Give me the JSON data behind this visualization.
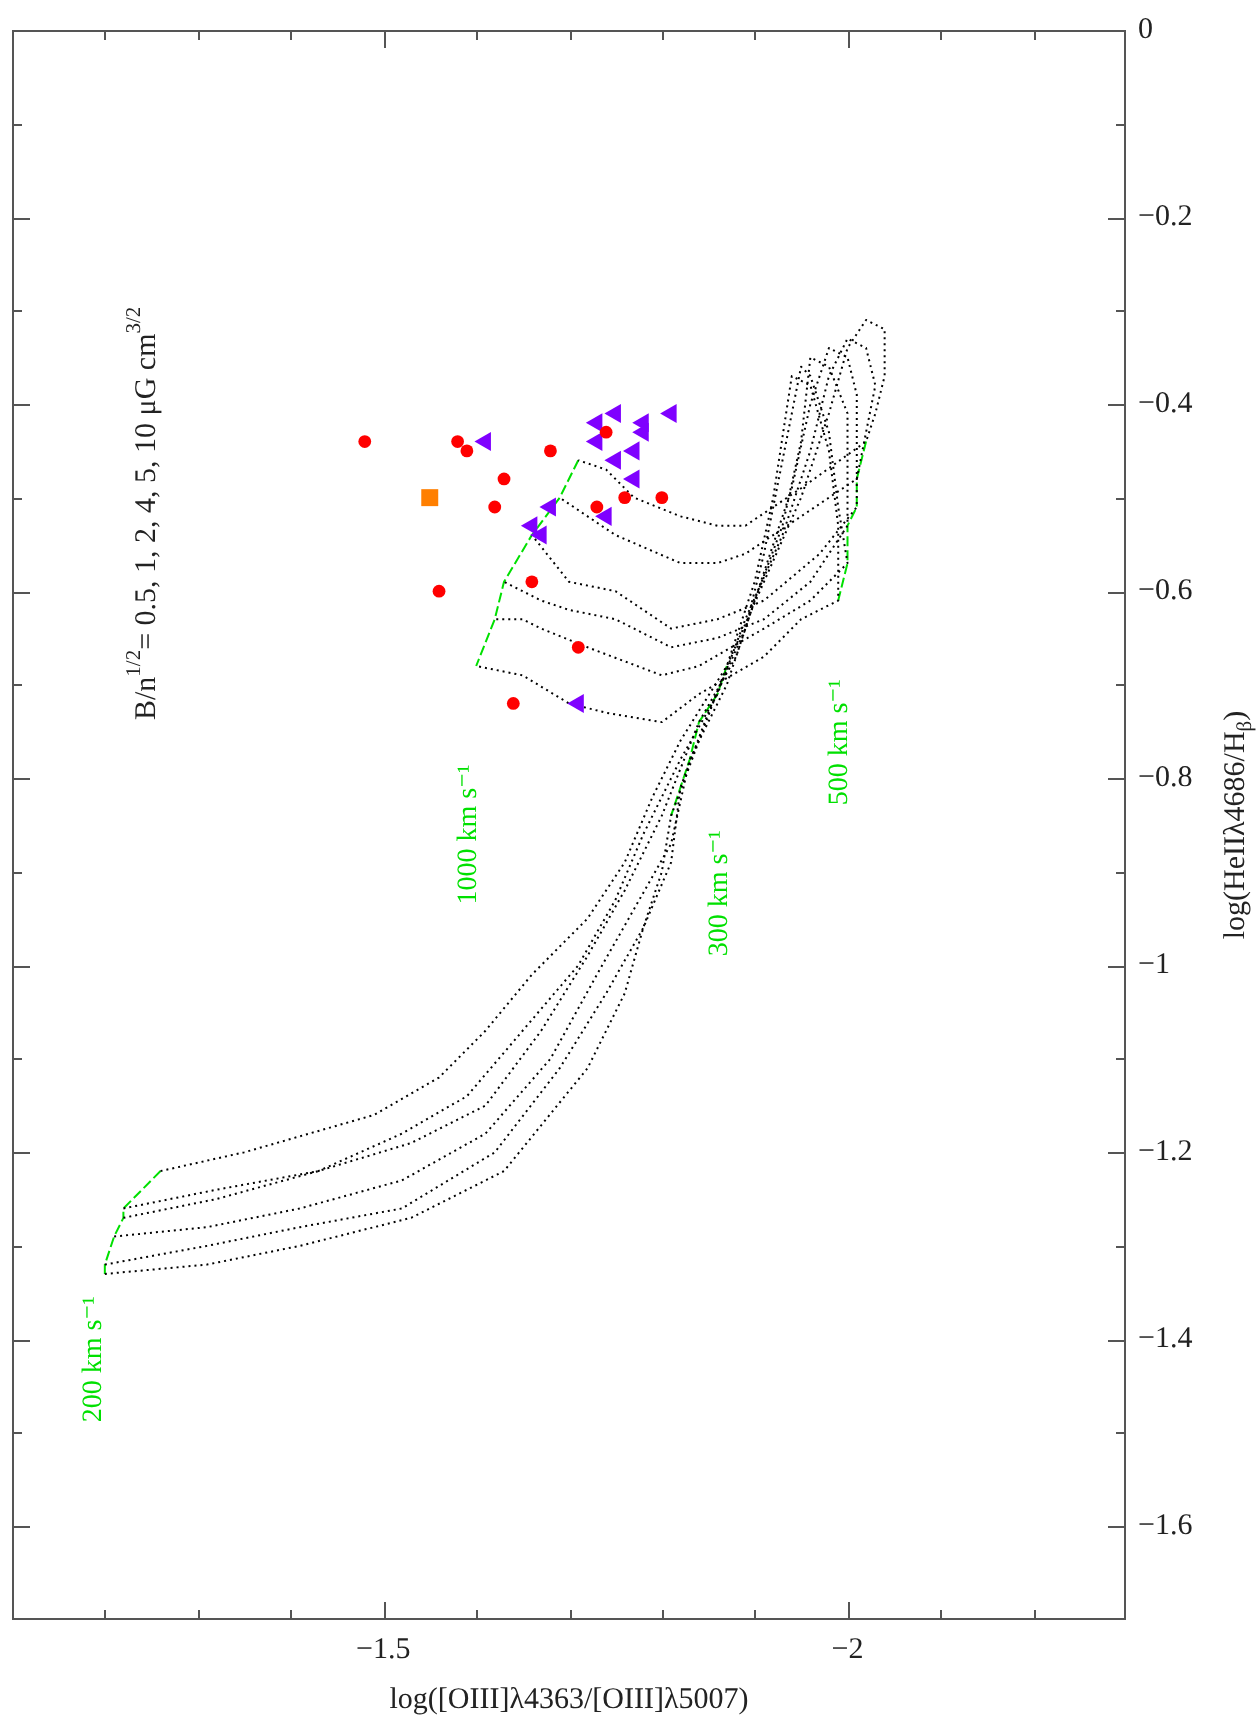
{
  "chart_data": {
    "type": "line",
    "xlabel": "log([OIII]λ4363/[OIII]λ5007)",
    "ylabel": "log(HeIIλ4686/H$_{β}$)",
    "xlim": [
      -1.1,
      -2.3
    ],
    "ylim": [
      -1.7,
      0
    ],
    "xticks": [
      {
        "value": -1.2,
        "label": null
      },
      {
        "value": -1.3,
        "label": null
      },
      {
        "value": -1.4,
        "label": null
      },
      {
        "value": -1.5,
        "label": "−1.5"
      },
      {
        "value": -1.6,
        "label": null
      },
      {
        "value": -1.7,
        "label": null
      },
      {
        "value": -1.8,
        "label": null
      },
      {
        "value": -1.9,
        "label": null
      },
      {
        "value": -2,
        "label": "−2"
      },
      {
        "value": -2.1,
        "label": null
      },
      {
        "value": -2.2,
        "label": null
      }
    ],
    "yticks": [
      0,
      {
        "value": -0.1,
        "label": null
      },
      {
        "value": -0.2,
        "label": "−0.2"
      },
      {
        "value": -0.3,
        "label": null
      },
      {
        "value": -0.4,
        "label": "−0.4"
      },
      {
        "value": -0.5,
        "label": null
      },
      {
        "value": -0.6,
        "label": "−0.6"
      },
      {
        "value": -0.7,
        "label": null
      },
      {
        "value": -0.8,
        "label": "−0.8"
      },
      {
        "value": -0.9,
        "label": null
      },
      {
        "value": -1,
        "label": "−1"
      },
      {
        "value": -1.1,
        "label": null
      },
      {
        "value": -1.2,
        "label": "−1.2"
      },
      {
        "value": -1.3,
        "label": null
      },
      {
        "value": -1.4,
        "label": "−1.4"
      },
      {
        "value": -1.5,
        "label": null
      },
      {
        "value": -1.6,
        "label": "−1.6"
      }
    ],
    "annotations": [
      "B/n$^{1/2}$= 0.5, 1, 2, 4, 5, 10 μG cm$^{3/2}$",
      "1000 km s⁻¹",
      "300 km s⁻¹",
      "500 km s⁻¹",
      "200 km s⁻¹"
    ],
    "series": [
      {
        "color": "#000000",
        "line_style": "dotted",
        "x": [
          -1.26,
          -1.35,
          -1.49,
          -1.56,
          -1.61,
          -1.66,
          -1.72,
          -1.76,
          -1.79,
          -1.82,
          -1.87,
          -1.91,
          -1.95,
          -1.98,
          -2.0,
          -2.02,
          -2.04,
          -2.04,
          -2.03,
          -2.02,
          -1.95,
          -1.89,
          -1.86,
          -1.82,
          -1.77,
          -1.74,
          -1.71
        ],
        "values": [
          -1.22,
          -1.2,
          -1.16,
          -1.12,
          -1.07,
          -1.01,
          -0.95,
          -0.89,
          -0.82,
          -0.76,
          -0.68,
          -0.59,
          -0.5,
          -0.41,
          -0.34,
          -0.31,
          -0.32,
          -0.37,
          -0.41,
          -0.44,
          -0.49,
          -0.53,
          -0.53,
          -0.52,
          -0.5,
          -0.47,
          -0.46
        ]
      },
      {
        "color": "#000000",
        "line_style": "dotted",
        "x": [
          -1.22,
          -1.32,
          -1.43,
          -1.52,
          -1.59,
          -1.65,
          -1.71,
          -1.75,
          -1.78,
          -1.82,
          -1.86,
          -1.89,
          -1.93,
          -1.96,
          -1.98,
          -2.0,
          -2.02,
          -2.03,
          -2.02,
          -2.01,
          -1.95,
          -1.89,
          -1.86,
          -1.82,
          -1.75,
          -1.72,
          -1.69
        ],
        "values": [
          -1.26,
          -1.24,
          -1.22,
          -1.18,
          -1.14,
          -1.07,
          -1.0,
          -0.93,
          -0.86,
          -0.78,
          -0.71,
          -0.63,
          -0.54,
          -0.45,
          -0.37,
          -0.33,
          -0.34,
          -0.38,
          -0.43,
          -0.48,
          -0.52,
          -0.56,
          -0.57,
          -0.57,
          -0.54,
          -0.52,
          -0.5
        ]
      },
      {
        "color": "#000000",
        "line_style": "dotted",
        "x": [
          -1.22,
          -1.32,
          -1.43,
          -1.53,
          -1.61,
          -1.67,
          -1.72,
          -1.76,
          -1.8,
          -1.82,
          -1.84,
          -1.88,
          -1.91,
          -1.94,
          -1.96,
          -1.98,
          -2.0,
          -2.01,
          -2.01,
          -2.01,
          -1.97,
          -1.91,
          -1.86,
          -1.81,
          -1.75,
          -1.7,
          -1.66
        ],
        "values": [
          -1.27,
          -1.25,
          -1.22,
          -1.19,
          -1.15,
          -1.07,
          -0.99,
          -0.92,
          -0.84,
          -0.79,
          -0.74,
          -0.67,
          -0.58,
          -0.49,
          -0.4,
          -0.34,
          -0.35,
          -0.39,
          -0.45,
          -0.51,
          -0.56,
          -0.61,
          -0.63,
          -0.64,
          -0.6,
          -0.59,
          -0.54
        ]
      },
      {
        "color": "#000000",
        "line_style": "dotted",
        "x": [
          -1.21,
          -1.31,
          -1.41,
          -1.52,
          -1.61,
          -1.68,
          -1.73,
          -1.77,
          -1.81,
          -1.83,
          -1.87,
          -1.9,
          -1.93,
          -1.95,
          -1.96,
          -1.98,
          -2.0,
          -2.0,
          -2.0,
          -1.96,
          -1.91,
          -1.86,
          -1.81,
          -1.75,
          -1.7,
          -1.67,
          -1.63
        ],
        "values": [
          -1.29,
          -1.28,
          -1.26,
          -1.23,
          -1.18,
          -1.1,
          -1.01,
          -0.94,
          -0.87,
          -0.78,
          -0.7,
          -0.61,
          -0.53,
          -0.44,
          -0.35,
          -0.36,
          -0.41,
          -0.48,
          -0.53,
          -0.59,
          -0.63,
          -0.65,
          -0.66,
          -0.63,
          -0.62,
          -0.61,
          -0.59
        ]
      },
      {
        "color": "#000000",
        "line_style": "dotted",
        "x": [
          -1.2,
          -1.31,
          -1.41,
          -1.52,
          -1.62,
          -1.69,
          -1.74,
          -1.78,
          -1.81,
          -1.82,
          -1.85,
          -1.89,
          -1.91,
          -1.93,
          -1.95,
          -1.96,
          -1.98,
          -1.99,
          -2.0,
          -1.96,
          -1.91,
          -1.84,
          -1.8,
          -1.72,
          -1.67,
          -1.65,
          -1.62
        ],
        "values": [
          -1.32,
          -1.3,
          -1.28,
          -1.26,
          -1.2,
          -1.11,
          -1.03,
          -0.96,
          -0.89,
          -0.81,
          -0.73,
          -0.64,
          -0.56,
          -0.46,
          -0.36,
          -0.37,
          -0.43,
          -0.51,
          -0.57,
          -0.61,
          -0.64,
          -0.68,
          -0.69,
          -0.66,
          -0.64,
          -0.63,
          -0.63
        ]
      },
      {
        "color": "#000000",
        "line_style": "dotted",
        "x": [
          -1.2,
          -1.31,
          -1.41,
          -1.53,
          -1.63,
          -1.72,
          -1.76,
          -1.78,
          -1.8,
          -1.81,
          -1.84,
          -1.87,
          -1.9,
          -1.92,
          -1.94,
          -1.96,
          -1.98,
          -1.99,
          -1.99,
          -1.95,
          -1.91,
          -1.84,
          -1.8,
          -1.74,
          -1.7,
          -1.65,
          -1.6
        ],
        "values": [
          -1.33,
          -1.32,
          -1.3,
          -1.27,
          -1.22,
          -1.11,
          -1.03,
          -0.96,
          -0.9,
          -0.84,
          -0.76,
          -0.68,
          -0.59,
          -0.5,
          -0.37,
          -0.38,
          -0.45,
          -0.53,
          -0.61,
          -0.63,
          -0.67,
          -0.71,
          -0.74,
          -0.73,
          -0.72,
          -0.69,
          -0.68
        ]
      },
      {
        "color": "#00e000",
        "line_style": "dashed",
        "x": [
          -1.26,
          -1.22,
          -1.22,
          -1.21,
          -1.2,
          -1.2
        ],
        "values": [
          -1.22,
          -1.26,
          -1.27,
          -1.29,
          -1.32,
          -1.33
        ]
      },
      {
        "color": "#00e000",
        "line_style": "dashed",
        "x": [
          -1.87,
          -1.86,
          -1.84,
          -1.83,
          -1.82,
          -1.81
        ],
        "values": [
          -0.68,
          -0.71,
          -0.74,
          -0.78,
          -0.81,
          -0.84
        ]
      },
      {
        "color": "#00e000",
        "line_style": "dashed",
        "x": [
          -2.02,
          -2.01,
          -2.01,
          -2.0,
          -2.0,
          -1.99
        ],
        "values": [
          -0.44,
          -0.48,
          -0.51,
          -0.53,
          -0.57,
          -0.61
        ]
      },
      {
        "color": "#00e000",
        "line_style": "dashed",
        "x": [
          -1.71,
          -1.69,
          -1.66,
          -1.63,
          -1.62,
          -1.6
        ],
        "values": [
          -0.46,
          -0.5,
          -0.54,
          -0.59,
          -0.63,
          -0.68
        ]
      },
      {
        "type": "scatter",
        "color": "#ff0000",
        "marker": "circle",
        "x": [
          -1.48,
          -1.58,
          -1.59,
          -1.68,
          -1.74,
          -1.63,
          -1.62,
          -1.73,
          -1.76,
          -1.8,
          -1.56,
          -1.66,
          -1.71,
          -1.64
        ],
        "values": [
          -0.44,
          -0.44,
          -0.45,
          -0.45,
          -0.43,
          -0.48,
          -0.51,
          -0.51,
          -0.5,
          -0.5,
          -0.6,
          -0.59,
          -0.66,
          -0.72
        ]
      },
      {
        "type": "scatter",
        "color": "#7f00ff",
        "marker": "triangle",
        "x": [
          -1.61,
          -1.75,
          -1.73,
          -1.78,
          -1.81,
          -1.73,
          -1.78,
          -1.75,
          -1.77,
          -1.77,
          -1.68,
          -1.74,
          -1.66,
          -1.67,
          -1.71
        ],
        "values": [
          -0.44,
          -0.41,
          -0.42,
          -0.42,
          -0.41,
          -0.44,
          -0.43,
          -0.46,
          -0.45,
          -0.48,
          -0.51,
          -0.52,
          -0.53,
          -0.54,
          -0.72
        ]
      },
      {
        "type": "scatter",
        "color": "#ff7f00",
        "marker": "square",
        "x": [
          -1.55
        ],
        "values": [
          -0.5
        ]
      }
    ]
  }
}
